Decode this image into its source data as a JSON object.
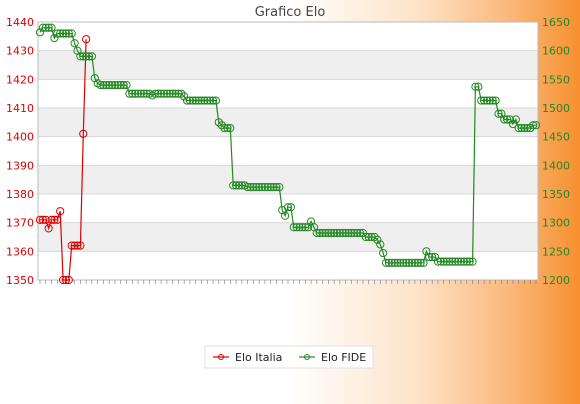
{
  "chart_data": {
    "type": "line",
    "title": "Grafico Elo",
    "xlabel": "",
    "ylabel": "",
    "grid": true,
    "legend_position": "bottom",
    "y_left": {
      "min": 1350,
      "max": 1440,
      "step": 10,
      "color": "#dd0000",
      "ticks": [
        "1350",
        "1360",
        "1370",
        "1380",
        "1390",
        "1400",
        "1410",
        "1420",
        "1430",
        "1440"
      ]
    },
    "y_right": {
      "min": 1200,
      "max": 1650,
      "step": 50,
      "color": "#228822",
      "ticks": [
        "1200",
        "1250",
        "1300",
        "1350",
        "1400",
        "1450",
        "1500",
        "1550",
        "1600",
        "1650"
      ]
    },
    "series": [
      {
        "name": "Elo Italia",
        "axis": "left",
        "color": "#dd0000",
        "values": [
          1371,
          1371,
          1371,
          1368,
          1371,
          1371,
          1371,
          1374,
          1350,
          1350,
          1350,
          1362,
          1362,
          1362,
          1362,
          1401,
          1434
        ]
      },
      {
        "name": "Elo FIDE",
        "axis": "right",
        "color": "#228822",
        "values": [
          1632,
          1640,
          1640,
          1640,
          1640,
          1622,
          1630,
          1630,
          1630,
          1630,
          1630,
          1630,
          1613,
          1600,
          1590,
          1590,
          1590,
          1590,
          1590,
          1552,
          1543,
          1540,
          1540,
          1540,
          1540,
          1540,
          1540,
          1540,
          1540,
          1540,
          1540,
          1525,
          1525,
          1525,
          1525,
          1525,
          1525,
          1525,
          1525,
          1522,
          1525,
          1525,
          1525,
          1525,
          1525,
          1525,
          1525,
          1525,
          1525,
          1525,
          1520,
          1513,
          1513,
          1513,
          1513,
          1513,
          1513,
          1513,
          1513,
          1513,
          1513,
          1513,
          1475,
          1470,
          1465,
          1465,
          1465,
          1365,
          1365,
          1365,
          1365,
          1365,
          1362,
          1362,
          1362,
          1362,
          1362,
          1362,
          1362,
          1362,
          1362,
          1362,
          1362,
          1362,
          1322,
          1312,
          1327,
          1327,
          1292,
          1292,
          1292,
          1292,
          1292,
          1292,
          1302,
          1292,
          1282,
          1282,
          1282,
          1282,
          1282,
          1282,
          1282,
          1282,
          1282,
          1282,
          1282,
          1282,
          1282,
          1282,
          1282,
          1282,
          1282,
          1275,
          1275,
          1275,
          1275,
          1270,
          1262,
          1247,
          1230,
          1230,
          1230,
          1230,
          1230,
          1230,
          1230,
          1230,
          1230,
          1230,
          1230,
          1230,
          1230,
          1230,
          1250,
          1240,
          1240,
          1240,
          1232,
          1232,
          1232,
          1232,
          1232,
          1232,
          1232,
          1232,
          1232,
          1232,
          1232,
          1232,
          1232,
          1537,
          1537,
          1513,
          1513,
          1513,
          1513,
          1513,
          1513,
          1490,
          1490,
          1480,
          1480,
          1480,
          1472,
          1480,
          1465,
          1465,
          1465,
          1465,
          1465,
          1470,
          1470
        ]
      }
    ]
  }
}
